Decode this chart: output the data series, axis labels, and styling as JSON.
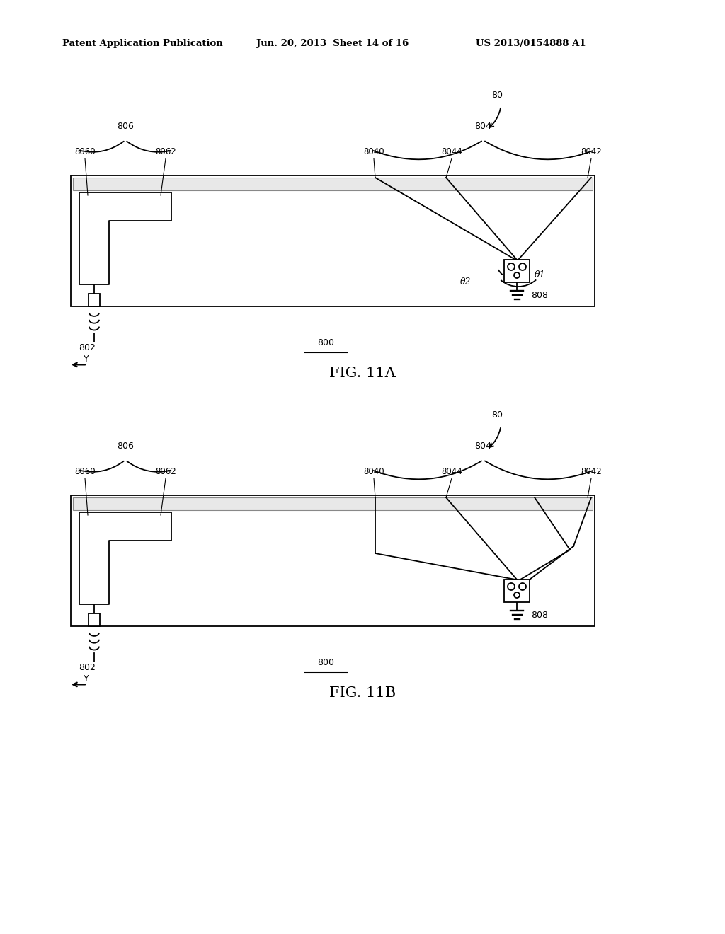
{
  "bg_color": "#ffffff",
  "line_color": "#000000",
  "header_left": "Patent Application Publication",
  "header_mid": "Jun. 20, 2013  Sheet 14 of 16",
  "header_right": "US 2013/0154888 A1",
  "fig_a_label": "FIG. 11A",
  "fig_b_label": "FIG. 11B",
  "label_80": "80",
  "label_804": "804",
  "label_806": "806",
  "label_8040": "8040",
  "label_8042": "8042",
  "label_8044": "8044",
  "label_8060": "8060",
  "label_8062": "8062",
  "label_800": "800",
  "label_802": "802",
  "label_808": "808",
  "label_theta1": "θ1",
  "label_theta2": "θ2",
  "label_Y": "Y"
}
